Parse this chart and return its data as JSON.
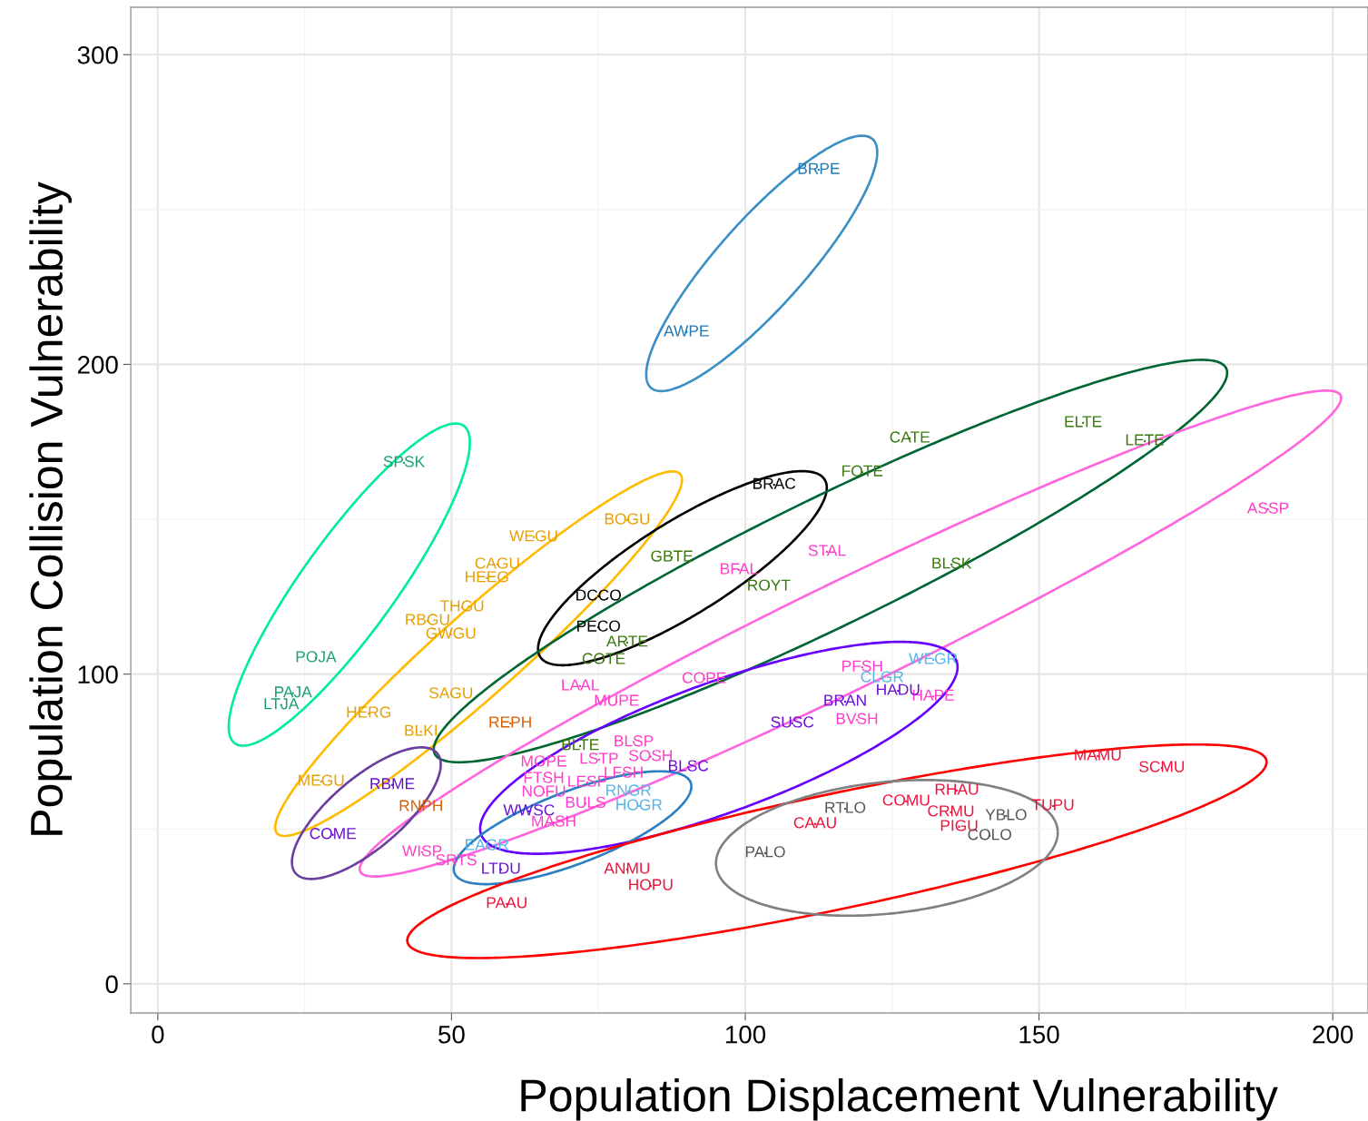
{
  "chart_data": {
    "type": "scatter",
    "xlabel": "Population Displacement Vulnerability",
    "ylabel": "Population Collision Vulnerability",
    "xlim": [
      -4.6,
      206.0
    ],
    "ylim": [
      -9.4,
      315.3
    ],
    "xticks": [
      0,
      {
        "value": 25,
        "label": null
      },
      50,
      {
        "value": 75,
        "label": null
      },
      100,
      {
        "value": 125,
        "label": null
      },
      150,
      {
        "value": 175,
        "label": null
      },
      200
    ],
    "yticks": [
      0,
      {
        "value": 50,
        "label": null
      },
      100,
      {
        "value": 150,
        "label": null
      },
      200,
      {
        "value": 250,
        "label": null
      },
      300
    ],
    "grid": true,
    "marker": "circle",
    "series": [
      {
        "color": "#1b9e77",
        "x": [
          41.9,
          26.9,
          23.0,
          21.0
        ],
        "values": [
          168.2,
          105.2,
          93.8,
          90.0
        ],
        "value_labels": [
          "SPSK",
          "POJA",
          "PAJA",
          "LTJA"
        ]
      },
      {
        "color": "#e69f00",
        "x": [
          64.0,
          79.9,
          57.8,
          56.0,
          51.8,
          45.9,
          49.9,
          49.9,
          35.9,
          44.8,
          27.8
        ],
        "values": [
          144.2,
          149.7,
          135.4,
          131.0,
          121.6,
          117.2,
          112.8,
          93.5,
          87.3,
          81.4,
          65.3
        ],
        "value_labels": [
          "WEGU",
          "BOGU",
          "CAGU",
          "HEEG",
          "THGU",
          "RBGU",
          "GWGU",
          "SAGU",
          "HERG",
          "BLKI",
          "MEGU"
        ]
      },
      {
        "color": "#d95f02",
        "x": [
          60.0,
          44.8
        ],
        "values": [
          84.1,
          57.1
        ],
        "value_labels": [
          "REPH",
          "RNPH"
        ]
      },
      {
        "color": "#000000",
        "x": [
          104.9,
          75.0,
          75.0
        ],
        "values": [
          161.1,
          125.1,
          115.1
        ],
        "value_labels": [
          "BRAC",
          "DCCO",
          "PECO"
        ]
      },
      {
        "color": "#3b7a0e",
        "x": [
          128.0,
          157.5,
          168.0,
          119.9,
          87.5,
          104.0,
          135.1,
          79.9,
          75.9,
          71.9
        ],
        "values": [
          176.1,
          181.1,
          175.2,
          165.2,
          137.7,
          128.3,
          135.4,
          110.2,
          104.6,
          76.8
        ],
        "value_labels": [
          "CATE",
          "ELTE",
          "LETE",
          "FOTE",
          "GBTE",
          "ROYT",
          "BLSK",
          "ARTE",
          "COTE",
          "BLTE"
        ]
      },
      {
        "color": "#ff3dc9",
        "x": [
          189.0,
          113.9,
          98.9,
          71.9,
          78.1,
          93.0,
          119.9,
          132.0,
          119.0,
          81.0,
          75.1,
          83.9,
          65.7,
          65.7,
          79.3,
          73.1,
          65.7,
          72.8,
          67.4,
          45.0,
          50.8
        ],
        "values": [
          153.2,
          139.5,
          133.6,
          96.1,
          91.1,
          98.4,
          102.2,
          92.8,
          85.2,
          78.0,
          72.4,
          73.3,
          71.5,
          66.2,
          67.9,
          65.0,
          61.8,
          58.2,
          52.1,
          42.5,
          39.6
        ],
        "value_labels": [
          "ASSP",
          "STAL",
          "BFAL",
          "LAAL",
          "MUPE",
          "COPE",
          "PFSH",
          "HAPE",
          "BVSH",
          "BLSP",
          "LSTP",
          "SOSH",
          "MOPE",
          "FTSH",
          "LFSH",
          "LESP",
          "NOFU",
          "BULS",
          "MASH",
          "WISP",
          "SRTS"
        ]
      },
      {
        "color": "#56b4e9",
        "x": [
          132.0,
          123.3,
          80.1,
          81.9,
          56.0
        ],
        "values": [
          104.6,
          98.7,
          62.1,
          57.4,
          44.5
        ],
        "value_labels": [
          "WEGR",
          "CLGR",
          "RNGR",
          "HOGR",
          "EAGR"
        ]
      },
      {
        "color": "#6b0fd6",
        "x": [
          126.0,
          117.0,
          108.0,
          90.3,
          39.9,
          63.2,
          29.8,
          58.4
        ],
        "values": [
          94.6,
          91.1,
          84.1,
          70.0,
          64.2,
          55.7,
          48.1,
          36.9
        ],
        "value_labels": [
          "HADU",
          "BRAN",
          "SUSC",
          "BLSC",
          "RBME",
          "WWSC",
          "COME",
          "LTDU"
        ]
      },
      {
        "color": "#f0123c",
        "x": [
          160.0,
          170.9,
          136.0,
          152.4,
          127.4,
          135.0,
          136.4,
          111.9,
          79.9,
          83.9,
          59.4
        ],
        "values": [
          73.5,
          69.7,
          62.4,
          57.4,
          58.9,
          55.4,
          50.7,
          51.6,
          36.9,
          31.6,
          25.8
        ],
        "value_labels": [
          "MAMU",
          "SCMU",
          "RHAU",
          "TUPU",
          "COMU",
          "CRMU",
          "PIGU",
          "CAAU",
          "ANMU",
          "HOPU",
          "PAAU"
        ]
      },
      {
        "color": "#555555",
        "x": [
          117.0,
          144.4,
          141.6,
          103.4
        ],
        "values": [
          56.5,
          54.2,
          47.8,
          42.2
        ],
        "value_labels": [
          "RTLO",
          "YBLO",
          "COLO",
          "PALO"
        ]
      },
      {
        "color": "#1f78b4",
        "x": [
          112.5,
          90.0
        ],
        "values": [
          262.8,
          210.4
        ],
        "value_labels": [
          "BRPE",
          "AWPE"
        ]
      }
    ]
  }
}
